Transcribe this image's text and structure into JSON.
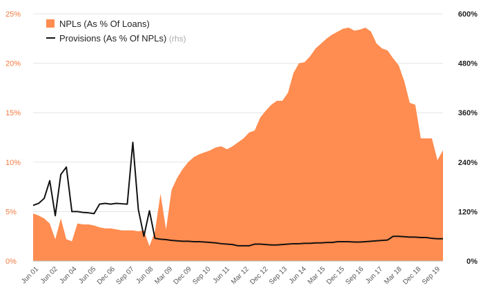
{
  "chart_data": {
    "type": "area",
    "title": "",
    "left_axis": {
      "ylim": [
        0,
        25
      ],
      "ticks": [
        0,
        5,
        10,
        15,
        20,
        25
      ],
      "tick_labels": [
        "0%",
        "5%",
        "10%",
        "15%",
        "20%",
        "25%"
      ]
    },
    "right_axis": {
      "ylim": [
        0,
        600
      ],
      "ticks": [
        0,
        120,
        240,
        360,
        480,
        600
      ],
      "tick_labels": [
        "0%",
        "120%",
        "240%",
        "360%",
        "480%",
        "600%"
      ]
    },
    "x_ticks": [
      "Jun 01",
      "Jun 02",
      "Jun 04",
      "Jun 05",
      "Dec 06",
      "Sep 07",
      "Jun 08",
      "Mar 09",
      "Dec 09",
      "Sep 10",
      "Jun 11",
      "Mar 12",
      "Dec 12",
      "Sep 13",
      "Jun 14",
      "Mar 15",
      "Dec 15",
      "Sep 16",
      "Jun 17",
      "Mar 18",
      "Dec 18",
      "Sep 19"
    ],
    "grid": true,
    "legend_position": "top-left",
    "colors": {
      "npl": "#ff8c50",
      "npl_tick": "#f27a3f",
      "provisions": "#111111"
    },
    "legend": [
      {
        "key": "npl",
        "label": "NPLs (As % Of Loans)",
        "note": ""
      },
      {
        "key": "provisions",
        "label": "Provisions (As % Of NPLs)",
        "note": "(rhs)"
      }
    ],
    "series": [
      {
        "name": "NPLs (As % Of Loans)",
        "axis": "left",
        "values": [
          4.8,
          4.6,
          4.3,
          3.8,
          2.2,
          4.3,
          2.2,
          2.0,
          3.8,
          3.7,
          3.7,
          3.6,
          3.4,
          3.3,
          3.3,
          3.2,
          3.1,
          3.1,
          3.1,
          3.0,
          3.1,
          1.5,
          3.0,
          6.8,
          3.2,
          7.2,
          8.4,
          9.3,
          10.0,
          10.5,
          10.8,
          11.0,
          11.2,
          11.5,
          11.6,
          11.3,
          11.6,
          12.0,
          12.4,
          13.0,
          13.2,
          14.5,
          15.2,
          15.8,
          16.2,
          16.2,
          17.0,
          19.0,
          20.0,
          20.1,
          20.7,
          21.5,
          22.0,
          22.5,
          22.9,
          23.2,
          23.5,
          23.6,
          23.3,
          23.4,
          23.6,
          23.2,
          22.0,
          21.5,
          21.3,
          20.5,
          19.8,
          18.2,
          16.0,
          15.8,
          12.4,
          12.4,
          12.4,
          10.2,
          11.2
        ]
      },
      {
        "name": "Provisions (As % Of NPLs)",
        "axis": "right",
        "values": [
          135,
          140,
          152,
          195,
          110,
          210,
          228,
          120,
          120,
          118,
          117,
          115,
          138,
          140,
          138,
          140,
          139,
          138,
          288,
          125,
          60,
          122,
          55,
          53,
          52,
          50,
          49,
          48,
          48,
          47,
          47,
          46,
          45,
          44,
          42,
          41,
          40,
          37,
          37,
          37,
          41,
          41,
          40,
          39,
          39,
          40,
          41,
          42,
          42,
          43,
          43,
          44,
          44,
          45,
          45,
          47,
          47,
          47,
          46,
          46,
          47,
          48,
          49,
          50,
          51,
          60,
          60,
          59,
          58,
          58,
          57,
          57,
          55,
          54,
          54
        ]
      }
    ]
  }
}
